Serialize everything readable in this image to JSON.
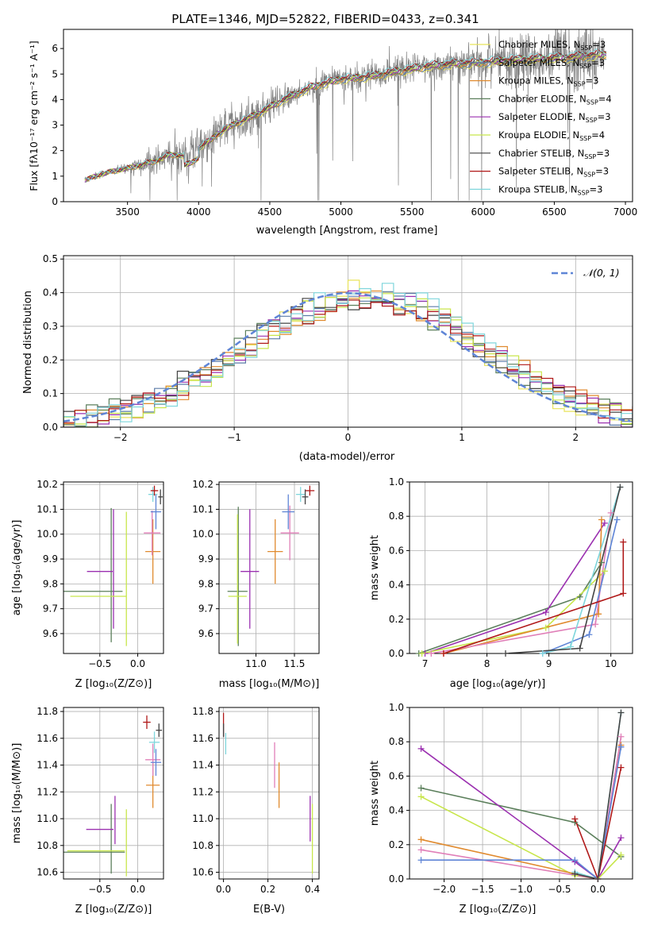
{
  "title": "PLATE=1346, MJD=52822, FIBERID=0433, z=0.341",
  "colors": {
    "chabrier_miles": "#e8e35a",
    "salpeter_miles": "#5b7ba8",
    "kroupa_miles": "#e08a2e",
    "chabrier_elodie": "#5b7f5b",
    "salpeter_elodie": "#9b30b0",
    "kroupa_elodie": "#c8e64c",
    "chabrier_stelib": "#444444",
    "salpeter_stelib": "#b01818",
    "kroupa_stelib": "#7fd6dc",
    "observed": "#808080",
    "pink": "#e07fb8",
    "blue": "#5f85d6",
    "gauss": "#5f85d6"
  },
  "chart_data": [
    {
      "id": "spectrum",
      "type": "line",
      "xlabel": "wavelength [Angstrom, rest frame]",
      "ylabel": "Flux [fλ10⁻¹⁷ erg cm⁻² s⁻¹ A⁻¹]",
      "xlim": [
        3050,
        7050
      ],
      "ylim": [
        0,
        6.75
      ],
      "xticks": [
        3500,
        4000,
        4500,
        5000,
        5500,
        6000,
        6500,
        7000
      ],
      "yticks": [
        0,
        1,
        2,
        3,
        4,
        5,
        6
      ],
      "grid": false,
      "legend_position": "upper-right",
      "continuum_x": [
        3200,
        3300,
        3400,
        3500,
        3600,
        3700,
        3800,
        3900,
        4000,
        4200,
        4400,
        4600,
        4800,
        5000,
        5200,
        5400,
        5600,
        5800,
        6000,
        6200,
        6400,
        6600,
        6800
      ],
      "continuum_y": [
        0.85,
        1.05,
        1.2,
        1.3,
        1.45,
        1.6,
        1.85,
        1.8,
        2.1,
        2.9,
        3.4,
        4.0,
        4.5,
        4.8,
        4.9,
        5.1,
        5.3,
        5.4,
        5.45,
        5.55,
        5.6,
        5.65,
        5.75
      ],
      "observed_range": [
        3200,
        6850
      ],
      "model_range": [
        3200,
        6870
      ],
      "series": [
        {
          "name": "Chabrier MILES, N_SSP=3",
          "color_key": "chabrier_miles"
        },
        {
          "name": "Salpeter MILES, N_SSP=3",
          "color_key": "salpeter_miles"
        },
        {
          "name": "Kroupa MILES, N_SSP=3",
          "color_key": "kroupa_miles"
        },
        {
          "name": "Chabrier ELODIE, N_SSP=4",
          "color_key": "chabrier_elodie"
        },
        {
          "name": "Salpeter ELODIE, N_SSP=3",
          "color_key": "salpeter_elodie"
        },
        {
          "name": "Kroupa ELODIE, N_SSP=4",
          "color_key": "kroupa_elodie"
        },
        {
          "name": "Chabrier STELIB, N_SSP=3",
          "color_key": "chabrier_stelib"
        },
        {
          "name": "Salpeter STELIB, N_SSP=3",
          "color_key": "salpeter_stelib"
        },
        {
          "name": "Kroupa STELIB, N_SSP=3",
          "color_key": "kroupa_stelib"
        }
      ]
    },
    {
      "id": "residuals",
      "type": "line",
      "xlabel": "(data-model)/error",
      "ylabel": "Normed distribution",
      "xlim": [
        -2.5,
        2.5
      ],
      "ylim": [
        0,
        0.51
      ],
      "xticks": [
        -2,
        -1,
        0,
        1,
        2
      ],
      "yticks": [
        0.0,
        0.1,
        0.2,
        0.3,
        0.4,
        0.5
      ],
      "grid": true,
      "legend_position": "upper-right",
      "legend": "𝒩(0, 1)",
      "bin_width": 0.1,
      "series_color_keys": [
        "chabrier_miles",
        "salpeter_miles",
        "kroupa_miles",
        "chabrier_elodie",
        "salpeter_elodie",
        "kroupa_elodie",
        "chabrier_stelib",
        "salpeter_stelib",
        "kroupa_stelib"
      ]
    },
    {
      "id": "z_age",
      "type": "scatter",
      "xlabel": "Z [log₁₀(Z/Z⊙)]",
      "ylabel": "age  [log₁₀(age/yr)]",
      "xlim": [
        -0.98,
        0.34
      ],
      "ylim": [
        9.52,
        10.21
      ],
      "xticks": [
        -0.5,
        0.0
      ],
      "yticks": [
        9.6,
        9.7,
        9.8,
        9.9,
        10.0,
        10.1,
        10.2
      ],
      "grid": true,
      "points": [
        {
          "x": -0.35,
          "y": 9.835,
          "xerr": 0.0,
          "yerr": 0.27,
          "color_key": "chabrier_elodie"
        },
        {
          "x": -0.62,
          "y": 9.77,
          "xerr": 0.42,
          "yerr": 0.0,
          "color_key": "chabrier_elodie"
        },
        {
          "x": -0.32,
          "y": 9.86,
          "xerr": 0.0,
          "yerr": 0.24,
          "color_key": "salpeter_elodie"
        },
        {
          "x": -0.5,
          "y": 9.85,
          "xerr": 0.17,
          "yerr": 0.0,
          "color_key": "salpeter_elodie"
        },
        {
          "x": -0.15,
          "y": 9.82,
          "xerr": 0.0,
          "yerr": 0.27,
          "color_key": "kroupa_elodie"
        },
        {
          "x": -0.52,
          "y": 9.75,
          "xerr": 0.37,
          "yerr": 0.0,
          "color_key": "kroupa_elodie"
        },
        {
          "x": 0.2,
          "y": 9.93,
          "xerr": 0.1,
          "yerr": 0.13,
          "color_key": "kroupa_miles"
        },
        {
          "x": 0.19,
          "y": 10.005,
          "xerr": 0.11,
          "yerr": 0.09,
          "color_key": "pink"
        },
        {
          "x": 0.24,
          "y": 10.09,
          "xerr": 0.07,
          "yerr": 0.07,
          "color_key": "blue"
        },
        {
          "x": 0.2,
          "y": 10.16,
          "xerr": 0.06,
          "yerr": 0.03,
          "color_key": "kroupa_stelib"
        },
        {
          "x": 0.22,
          "y": 10.175,
          "xerr": 0.05,
          "yerr": 0.02,
          "color_key": "salpeter_stelib"
        },
        {
          "x": 0.3,
          "y": 10.15,
          "xerr": 0.03,
          "yerr": 0.03,
          "color_key": "chabrier_stelib"
        }
      ]
    },
    {
      "id": "mass_age",
      "type": "scatter",
      "xlabel": "mass [log₁₀(M/M⊙)]",
      "ylabel": "",
      "xlim": [
        10.52,
        11.82
      ],
      "ylim": [
        9.52,
        10.21
      ],
      "xticks": [
        11.0,
        11.5
      ],
      "yticks": [
        9.6,
        9.7,
        9.8,
        9.9,
        10.0,
        10.1,
        10.2
      ],
      "grid": true,
      "points": [
        {
          "x": 10.77,
          "y": 9.83,
          "xerr": 0.0,
          "yerr": 0.28,
          "color_key": "chabrier_elodie"
        },
        {
          "x": 10.76,
          "y": 9.77,
          "xerr": 0.13,
          "yerr": 0.0,
          "color_key": "chabrier_elodie"
        },
        {
          "x": 10.92,
          "y": 9.86,
          "xerr": 0.0,
          "yerr": 0.24,
          "color_key": "salpeter_elodie"
        },
        {
          "x": 10.92,
          "y": 9.85,
          "xerr": 0.12,
          "yerr": 0.0,
          "color_key": "salpeter_elodie"
        },
        {
          "x": 10.76,
          "y": 9.82,
          "xerr": 0.0,
          "yerr": 0.26,
          "color_key": "kroupa_elodie"
        },
        {
          "x": 10.76,
          "y": 9.75,
          "xerr": 0.12,
          "yerr": 0.0,
          "color_key": "kroupa_elodie"
        },
        {
          "x": 11.25,
          "y": 9.93,
          "xerr": 0.1,
          "yerr": 0.13,
          "color_key": "kroupa_miles"
        },
        {
          "x": 11.44,
          "y": 10.005,
          "xerr": 0.12,
          "yerr": 0.11,
          "color_key": "pink"
        },
        {
          "x": 11.42,
          "y": 10.09,
          "xerr": 0.08,
          "yerr": 0.07,
          "color_key": "blue"
        },
        {
          "x": 11.58,
          "y": 10.16,
          "xerr": 0.06,
          "yerr": 0.03,
          "color_key": "kroupa_stelib"
        },
        {
          "x": 11.7,
          "y": 10.175,
          "xerr": 0.06,
          "yerr": 0.02,
          "color_key": "salpeter_stelib"
        },
        {
          "x": 11.64,
          "y": 10.15,
          "xerr": 0.04,
          "yerr": 0.03,
          "color_key": "chabrier_stelib"
        }
      ]
    },
    {
      "id": "age_weight",
      "type": "line",
      "xlabel": "age  [log₁₀(age/yr)]",
      "ylabel": "mass weight",
      "xlim": [
        6.75,
        10.35
      ],
      "ylim": [
        0.0,
        1.0
      ],
      "xticks": [
        7,
        8,
        9,
        10
      ],
      "yticks": [
        0.0,
        0.2,
        0.4,
        0.6,
        0.8,
        1.0
      ],
      "grid": true,
      "series": [
        {
          "color_key": "chabrier_elodie",
          "x": [
            6.9,
            9.5,
            9.85
          ],
          "y": [
            0.0,
            0.33,
            0.53
          ]
        },
        {
          "color_key": "salpeter_elodie",
          "x": [
            7.0,
            8.95,
            9.9
          ],
          "y": [
            0.0,
            0.24,
            0.76
          ]
        },
        {
          "color_key": "kroupa_elodie",
          "x": [
            6.95,
            8.95,
            9.9
          ],
          "y": [
            0.0,
            0.15,
            0.48
          ]
        },
        {
          "color_key": "kroupa_miles",
          "x": [
            7.3,
            9.8,
            9.85
          ],
          "y": [
            0.0,
            0.23,
            0.78
          ]
        },
        {
          "color_key": "pink",
          "x": [
            7.1,
            9.75,
            10.0
          ],
          "y": [
            0.0,
            0.17,
            0.82
          ]
        },
        {
          "color_key": "blue",
          "x": [
            8.9,
            9.65,
            10.1
          ],
          "y": [
            0.0,
            0.11,
            0.78
          ]
        },
        {
          "color_key": "kroupa_stelib",
          "x": [
            8.9,
            9.35,
            10.15
          ],
          "y": [
            0.0,
            0.04,
            0.97
          ]
        },
        {
          "color_key": "salpeter_stelib",
          "x": [
            7.3,
            10.2,
            10.2
          ],
          "y": [
            0.0,
            0.35,
            0.65
          ]
        },
        {
          "color_key": "chabrier_stelib",
          "x": [
            8.3,
            9.5,
            10.15
          ],
          "y": [
            0.0,
            0.03,
            0.97
          ]
        }
      ]
    },
    {
      "id": "z_mass",
      "type": "scatter",
      "xlabel": "Z [log₁₀(Z/Z⊙)]",
      "ylabel": "mass [log₁₀(M/M⊙)]",
      "xlim": [
        -0.98,
        0.34
      ],
      "ylim": [
        10.55,
        11.83
      ],
      "xticks": [
        -0.5,
        0.0
      ],
      "yticks": [
        10.6,
        10.8,
        11.0,
        11.2,
        11.4,
        11.6,
        11.8
      ],
      "grid": true,
      "points": [
        {
          "x": -0.35,
          "y": 10.85,
          "xerr": 0.0,
          "yerr": 0.26,
          "color_key": "chabrier_elodie"
        },
        {
          "x": -0.62,
          "y": 10.75,
          "xerr": 0.45,
          "yerr": 0.0,
          "color_key": "chabrier_elodie"
        },
        {
          "x": -0.3,
          "y": 10.99,
          "xerr": 0.0,
          "yerr": 0.18,
          "color_key": "salpeter_elodie"
        },
        {
          "x": -0.5,
          "y": 10.92,
          "xerr": 0.18,
          "yerr": 0.0,
          "color_key": "salpeter_elodie"
        },
        {
          "x": -0.15,
          "y": 10.82,
          "xerr": 0.0,
          "yerr": 0.25,
          "color_key": "kroupa_elodie"
        },
        {
          "x": -0.55,
          "y": 10.76,
          "xerr": 0.38,
          "yerr": 0.0,
          "color_key": "kroupa_elodie"
        },
        {
          "x": 0.2,
          "y": 11.25,
          "xerr": 0.09,
          "yerr": 0.17,
          "color_key": "kroupa_miles"
        },
        {
          "x": 0.2,
          "y": 11.44,
          "xerr": 0.1,
          "yerr": 0.12,
          "color_key": "pink"
        },
        {
          "x": 0.24,
          "y": 11.42,
          "xerr": 0.07,
          "yerr": 0.1,
          "color_key": "blue"
        },
        {
          "x": 0.22,
          "y": 11.57,
          "xerr": 0.07,
          "yerr": 0.08,
          "color_key": "kroupa_stelib"
        },
        {
          "x": 0.12,
          "y": 11.72,
          "xerr": 0.05,
          "yerr": 0.05,
          "color_key": "salpeter_stelib"
        },
        {
          "x": 0.28,
          "y": 11.66,
          "xerr": 0.04,
          "yerr": 0.05,
          "color_key": "chabrier_stelib"
        }
      ]
    },
    {
      "id": "ebv_mass",
      "type": "scatter",
      "xlabel": "E(B-V)",
      "ylabel": "",
      "xlim": [
        -0.02,
        0.43
      ],
      "ylim": [
        10.55,
        11.83
      ],
      "xticks": [
        0.0,
        0.2,
        0.4
      ],
      "yticks": [
        10.6,
        10.8,
        11.0,
        11.2,
        11.4,
        11.6,
        11.8
      ],
      "grid": true,
      "points": [
        {
          "x": 0.0,
          "y": 11.7,
          "xerr": 0.0,
          "yerr": 0.09,
          "color_key": "salpeter_stelib"
        },
        {
          "x": 0.0,
          "y": 11.66,
          "xerr": 0.0,
          "yerr": 0.05,
          "color_key": "chabrier_stelib"
        },
        {
          "x": 0.01,
          "y": 11.56,
          "xerr": 0.0,
          "yerr": 0.08,
          "color_key": "kroupa_stelib"
        },
        {
          "x": 0.23,
          "y": 11.4,
          "xerr": 0.0,
          "yerr": 0.17,
          "color_key": "pink"
        },
        {
          "x": 0.25,
          "y": 11.25,
          "xerr": 0.0,
          "yerr": 0.17,
          "color_key": "kroupa_miles"
        },
        {
          "x": 0.39,
          "y": 11.0,
          "xerr": 0.0,
          "yerr": 0.17,
          "color_key": "salpeter_elodie"
        },
        {
          "x": 0.4,
          "y": 10.85,
          "xerr": 0.0,
          "yerr": 0.26,
          "color_key": "kroupa_elodie"
        }
      ]
    },
    {
      "id": "z_weight",
      "type": "line",
      "xlabel": "Z [log₁₀(Z/Z⊙)]",
      "ylabel": "mass weight",
      "xlim": [
        -2.45,
        0.45
      ],
      "ylim": [
        0.0,
        1.0
      ],
      "xticks": [
        -2.0,
        -1.5,
        -1.0,
        -0.5,
        0.0
      ],
      "yticks": [
        0.0,
        0.2,
        0.4,
        0.6,
        0.8,
        1.0
      ],
      "grid": true,
      "series": [
        {
          "color_key": "chabrier_elodie",
          "x": [
            -2.3,
            -0.3,
            0.3
          ],
          "y": [
            0.53,
            0.33,
            0.13
          ]
        },
        {
          "color_key": "salpeter_elodie",
          "x": [
            -2.3,
            -0.3,
            0.0,
            0.3
          ],
          "y": [
            0.76,
            0.1,
            0.0,
            0.24
          ]
        },
        {
          "color_key": "kroupa_elodie",
          "x": [
            -2.3,
            -0.3,
            0.0,
            0.3
          ],
          "y": [
            0.48,
            0.02,
            0.0,
            0.14
          ]
        },
        {
          "color_key": "kroupa_miles",
          "x": [
            -2.3,
            0.0,
            0.3
          ],
          "y": [
            0.23,
            0.0,
            0.78
          ]
        },
        {
          "color_key": "pink",
          "x": [
            -2.3,
            0.0,
            0.3
          ],
          "y": [
            0.17,
            0.0,
            0.83
          ]
        },
        {
          "color_key": "blue",
          "x": [
            -2.3,
            -0.3,
            0.0,
            0.3
          ],
          "y": [
            0.11,
            0.11,
            0.0,
            0.77
          ]
        },
        {
          "color_key": "kroupa_stelib",
          "x": [
            -0.3,
            0.0,
            0.3
          ],
          "y": [
            0.04,
            0.0,
            0.97
          ]
        },
        {
          "color_key": "salpeter_stelib",
          "x": [
            -0.3,
            0.0,
            0.3
          ],
          "y": [
            0.35,
            0.0,
            0.65
          ]
        },
        {
          "color_key": "chabrier_stelib",
          "x": [
            -0.3,
            0.0,
            0.3
          ],
          "y": [
            0.03,
            0.0,
            0.97
          ]
        }
      ]
    }
  ]
}
